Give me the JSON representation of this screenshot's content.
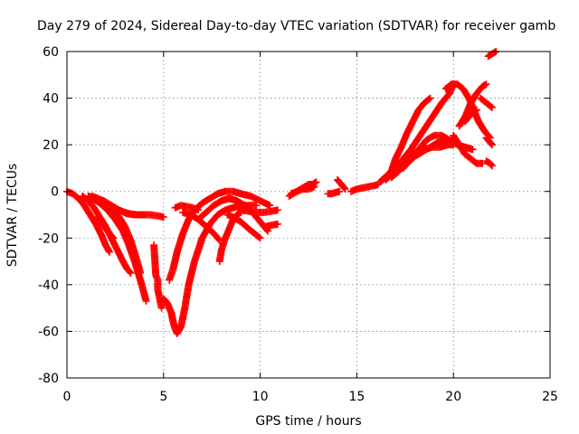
{
  "chart_data": {
    "type": "scatter",
    "title": "Day 279 of 2024, Sidereal Day-to-day VTEC variation (SDTVAR) for receiver gamb",
    "xlabel": "GPS time / hours",
    "ylabel": "SDTVAR / TECUs",
    "xlim": [
      0,
      25
    ],
    "ylim": [
      -80,
      60
    ],
    "xticks": [
      0,
      5,
      10,
      15,
      20,
      25
    ],
    "yticks": [
      60,
      40,
      20,
      0,
      -20,
      -40,
      -60,
      -80
    ],
    "grid": true,
    "marker": "+",
    "color": "#ff0000",
    "series": [
      {
        "name": "arc-1",
        "x": [
          0.0,
          0.3,
          0.6,
          0.9,
          1.2,
          1.5,
          1.8,
          2.0,
          2.2
        ],
        "y": [
          0,
          -1,
          -3,
          -6,
          -10,
          -14,
          -19,
          -23,
          -26
        ]
      },
      {
        "name": "arc-2",
        "x": [
          0.8,
          1.1,
          1.4,
          1.7,
          2.0,
          2.3,
          2.6,
          2.9,
          3.1,
          3.3
        ],
        "y": [
          -2,
          -4,
          -7,
          -11,
          -15,
          -20,
          -25,
          -30,
          -33,
          -35
        ]
      },
      {
        "name": "arc-3",
        "x": [
          1.3,
          1.7,
          2.1,
          2.5,
          2.9,
          3.2,
          3.5,
          3.8,
          4.0,
          4.1
        ],
        "y": [
          -3,
          -5,
          -8,
          -12,
          -17,
          -23,
          -30,
          -38,
          -44,
          -47
        ]
      },
      {
        "name": "arc-4",
        "x": [
          1.1,
          1.5,
          1.9,
          2.3,
          2.7,
          3.0,
          3.3,
          3.6,
          3.8
        ],
        "y": [
          -2,
          -3,
          -5,
          -8,
          -11,
          -15,
          -21,
          -29,
          -35
        ]
      },
      {
        "name": "arc-5",
        "x": [
          1.5,
          1.9,
          2.3,
          2.7,
          3.1,
          3.5,
          3.9,
          4.3,
          4.7,
          5.0
        ],
        "y": [
          -3,
          -4,
          -6,
          -8,
          -9.5,
          -10,
          -10,
          -10,
          -10.5,
          -11
        ]
      },
      {
        "name": "arc-6",
        "x": [
          1.3,
          1.6,
          2.0,
          2.4,
          2.8,
          3.2,
          3.6,
          4.0
        ],
        "y": [
          -2,
          -3,
          -5,
          -7,
          -8.5,
          -9.5,
          -10,
          -10
        ]
      },
      {
        "name": "arc-7",
        "x": [
          1.6,
          1.8,
          2.0,
          2.2,
          2.4
        ],
        "y": [
          -11,
          -13,
          -16,
          -18,
          -20
        ]
      },
      {
        "name": "isolated-1",
        "x": [
          4.5,
          4.6,
          4.7,
          4.7,
          4.7,
          4.9
        ],
        "y": [
          -23,
          -36,
          -38,
          -40,
          -42,
          -50
        ]
      },
      {
        "name": "arc-8",
        "x": [
          5.0,
          5.2,
          5.4,
          5.5,
          5.6,
          5.7,
          5.9,
          6.1,
          6.3,
          6.6,
          7.0,
          7.4,
          7.8,
          8.2,
          8.6,
          9.0,
          9.4,
          9.8
        ],
        "y": [
          -46,
          -48,
          -52,
          -56,
          -59,
          -61,
          -58,
          -50,
          -40,
          -30,
          -20,
          -14,
          -10,
          -8,
          -7,
          -6,
          -6,
          -6
        ]
      },
      {
        "name": "arc-9",
        "x": [
          5.3,
          5.5,
          5.7,
          6.0,
          6.3,
          6.6,
          7.0,
          7.4,
          7.8,
          8.2,
          8.6,
          9.0,
          9.5,
          10.0,
          10.5
        ],
        "y": [
          -38,
          -33,
          -26,
          -18,
          -12,
          -8,
          -5,
          -3,
          -1,
          0,
          0,
          -1,
          -2,
          -4,
          -6
        ]
      },
      {
        "name": "arc-10",
        "x": [
          5.6,
          5.9,
          6.2,
          6.5,
          6.8
        ],
        "y": [
          -7,
          -6,
          -6.5,
          -7,
          -8
        ]
      },
      {
        "name": "arc-11",
        "x": [
          6.0,
          6.4,
          6.8,
          7.2,
          7.6,
          7.9
        ],
        "y": [
          -9,
          -10,
          -12,
          -15,
          -18,
          -21
        ]
      },
      {
        "name": "arc-12",
        "x": [
          6.8,
          7.2,
          7.6,
          8.0,
          8.4,
          8.8,
          9.2,
          9.6,
          10.0,
          10.4
        ],
        "y": [
          -12,
          -9,
          -6,
          -4,
          -3,
          -4,
          -6,
          -9,
          -13,
          -17
        ]
      },
      {
        "name": "arc-13",
        "x": [
          7.9,
          8.0,
          8.2,
          8.4,
          8.6,
          8.8,
          9.0
        ],
        "y": [
          -30,
          -25,
          -20,
          -16,
          -12,
          -10,
          -9
        ]
      },
      {
        "name": "arc-14",
        "x": [
          8.3,
          8.6,
          9.0,
          9.4,
          9.7,
          10.0
        ],
        "y": [
          -10,
          -11,
          -13,
          -16,
          -18,
          -20
        ]
      },
      {
        "name": "arc-15",
        "x": [
          9.0,
          9.4,
          9.8,
          10.2,
          10.6,
          10.9
        ],
        "y": [
          -8,
          -8.5,
          -9,
          -9,
          -8.5,
          -8
        ]
      },
      {
        "name": "arc-16",
        "x": [
          10.3,
          10.6,
          10.9
        ],
        "y": [
          -15,
          -14.5,
          -14
        ]
      },
      {
        "name": "arc-17",
        "x": [
          11.5,
          11.7,
          11.9,
          12.1,
          12.3,
          12.5,
          12.7,
          12.9
        ],
        "y": [
          -2,
          -1,
          0,
          1,
          2,
          3,
          3,
          4
        ]
      },
      {
        "name": "arc-18",
        "x": [
          11.6,
          11.9,
          12.2,
          12.5,
          12.8
        ],
        "y": [
          -1,
          0,
          1,
          1,
          2
        ]
      },
      {
        "name": "arc-19",
        "x": [
          13.5,
          13.7,
          13.9,
          14.1
        ],
        "y": [
          -1,
          -1,
          -0.5,
          0
        ]
      },
      {
        "name": "arc-20",
        "x": [
          14.0,
          14.2,
          14.4
        ],
        "y": [
          5,
          3,
          1
        ]
      },
      {
        "name": "arc-21",
        "x": [
          14.7,
          15.0,
          15.3,
          15.6,
          15.9,
          16.1
        ],
        "y": [
          0,
          1,
          1.5,
          2,
          2.5,
          3
        ]
      },
      {
        "name": "arc-22",
        "x": [
          16.2,
          16.5,
          16.8,
          17.0,
          17.3,
          17.6,
          17.9,
          18.2,
          18.5,
          18.8
        ],
        "y": [
          4,
          6,
          9,
          14,
          19,
          25,
          30,
          35,
          38,
          40
        ]
      },
      {
        "name": "arc-23",
        "x": [
          16.3,
          16.6,
          17.0,
          17.4,
          17.8,
          18.2,
          18.6,
          19.0,
          19.4,
          19.8,
          20.0
        ],
        "y": [
          5,
          7,
          10,
          14,
          18,
          23,
          28,
          33,
          38,
          42,
          46
        ]
      },
      {
        "name": "arc-24",
        "x": [
          16.5,
          16.9,
          17.3,
          17.7,
          18.1,
          18.5,
          18.9,
          19.3,
          19.7,
          20.0
        ],
        "y": [
          5,
          8,
          12,
          15,
          17,
          18,
          19,
          19,
          20,
          20
        ]
      },
      {
        "name": "arc-25",
        "x": [
          16.8,
          17.2,
          17.6,
          18.0,
          18.4,
          18.8,
          19.2,
          19.6
        ],
        "y": [
          6,
          9,
          12,
          15,
          17,
          19,
          21,
          22
        ]
      },
      {
        "name": "arc-26",
        "x": [
          17.4,
          17.8,
          18.2,
          18.6,
          19.0,
          19.4,
          19.8,
          20.2,
          20.6,
          21.0
        ],
        "y": [
          10,
          14,
          18,
          22,
          24,
          24,
          22,
          20,
          19,
          18
        ]
      },
      {
        "name": "arc-27",
        "x": [
          19.6,
          19.9,
          20.2,
          20.5,
          20.8,
          21.0,
          21.3,
          21.6,
          21.9
        ],
        "y": [
          44,
          46,
          46,
          44,
          40,
          36,
          30,
          26,
          23
        ]
      },
      {
        "name": "arc-28",
        "x": [
          20.3,
          20.6,
          20.9,
          21.2,
          21.5,
          21.7
        ],
        "y": [
          28,
          32,
          38,
          42,
          45,
          46
        ]
      },
      {
        "name": "arc-29",
        "x": [
          20.0,
          20.3,
          20.6,
          20.9,
          21.2,
          21.5
        ],
        "y": [
          24,
          20,
          16,
          14,
          12,
          12
        ]
      },
      {
        "name": "arc-30",
        "x": [
          20.6,
          20.9,
          21.2
        ],
        "y": [
          30,
          33,
          35
        ]
      },
      {
        "name": "arc-31",
        "x": [
          21.4,
          21.7,
          22.0
        ],
        "y": [
          40,
          38,
          36
        ]
      },
      {
        "name": "arc-32",
        "x": [
          21.8,
          22.0,
          22.2
        ],
        "y": [
          58,
          59,
          60
        ]
      },
      {
        "name": "arc-33",
        "x": [
          21.7,
          21.9,
          22.0
        ],
        "y": [
          23,
          21,
          20
        ]
      },
      {
        "name": "arc-34",
        "x": [
          21.7,
          21.9,
          22.0
        ],
        "y": [
          13,
          12,
          11
        ]
      }
    ]
  }
}
